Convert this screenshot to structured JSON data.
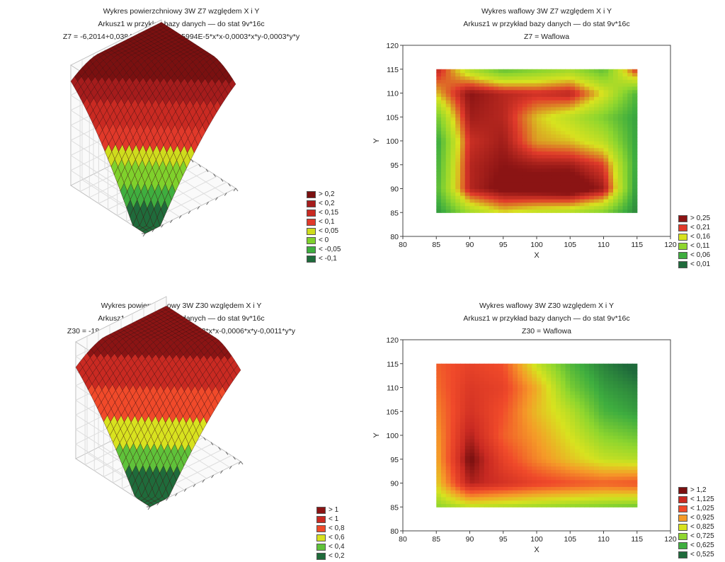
{
  "chart_data": [
    {
      "type": "surface",
      "title": "Wykres powierzchniowy 3W    Z7 względem X i Y",
      "subtitle": "Arkusz1 w przykład bazy danych — do stat 9v*16c",
      "equation": "Z7 = -6,2014+0,0384*x+0,0885*y-6,5994E-5*x*x-0,0003*x*y-0,0003*y*y",
      "legend": [
        "> 0,2",
        "< 0,2",
        "< 0,15",
        "< 0,1",
        "< 0,05",
        "< 0",
        "< -0,05",
        "< -0,1"
      ],
      "legend_colors": [
        "#7a1010",
        "#a51c1c",
        "#c92a22",
        "#e0392a",
        "#cfdc1d",
        "#7fd12c",
        "#3fae3f",
        "#1f6b3b"
      ]
    },
    {
      "type": "heatmap",
      "title": "Wykres waflowy 3W    Z7 względem X i Y",
      "subtitle": "Arkusz1 w przykład bazy danych — do stat 9v*16c",
      "series_label": "Z7 = Waflowa",
      "xlabel": "X",
      "ylabel": "Y",
      "xlim": [
        80,
        120
      ],
      "ylim": [
        80,
        120
      ],
      "xticks": [
        80,
        85,
        90,
        95,
        100,
        105,
        110,
        115,
        120
      ],
      "yticks": [
        80,
        85,
        90,
        95,
        100,
        105,
        110,
        115,
        120
      ],
      "x": [
        85,
        90,
        95,
        100,
        105,
        110,
        115
      ],
      "y": [
        85,
        90,
        95,
        100,
        105,
        110,
        115
      ],
      "z": [
        [
          0.04,
          0.12,
          0.16,
          0.14,
          0.13,
          0.1,
          0.03
        ],
        [
          0.07,
          0.23,
          0.26,
          0.27,
          0.28,
          0.24,
          0.04
        ],
        [
          0.06,
          0.23,
          0.25,
          0.24,
          0.24,
          0.21,
          0.05
        ],
        [
          0.05,
          0.22,
          0.24,
          0.18,
          0.17,
          0.14,
          0.05
        ],
        [
          0.09,
          0.24,
          0.23,
          0.17,
          0.14,
          0.1,
          0.05
        ],
        [
          0.17,
          0.25,
          0.23,
          0.22,
          0.23,
          0.16,
          0.07
        ],
        [
          0.23,
          0.13,
          0.08,
          0.1,
          0.12,
          0.08,
          0.22
        ]
      ],
      "legend": [
        "> 0,25",
        "< 0,21",
        "< 0,16",
        "< 0,11",
        "< 0,06",
        "< 0,01"
      ],
      "thresholds": [
        0.01,
        0.06,
        0.11,
        0.16,
        0.21,
        0.25
      ],
      "legend_colors": [
        "#8b1414",
        "#e03a2a",
        "#d8e21f",
        "#8fd62e",
        "#3fae3f",
        "#1f6b3b"
      ]
    },
    {
      "type": "surface",
      "title": "Wykres powierzchniowy 3W    Z30 względem X i Y",
      "subtitle": "Arkusz1 w przykład bazy danych — do stat 9v*16c",
      "equation": "Z30 = -18,9883+0,118*x+0,2881*y-0,0003*x*x-0,0006*x*y-0,0011*y*y",
      "legend": [
        "> 1",
        "< 1",
        "< 0,8",
        "< 0,6",
        "< 0,4",
        "< 0,2"
      ],
      "legend_colors": [
        "#8b1414",
        "#c92a22",
        "#f04a2a",
        "#d8e21f",
        "#5fc23a",
        "#1f6b3b"
      ]
    },
    {
      "type": "heatmap",
      "title": "Wykres waflowy 3W    Z30 względem X i Y",
      "subtitle": "Arkusz1 w przykład bazy danych — do stat 9v*16c",
      "series_label": "Z30 = Waflowa",
      "xlabel": "X",
      "ylabel": "Y",
      "xlim": [
        80,
        120
      ],
      "ylim": [
        80,
        120
      ],
      "xticks": [
        80,
        85,
        90,
        95,
        100,
        105,
        110,
        115,
        120
      ],
      "yticks": [
        80,
        85,
        90,
        95,
        100,
        105,
        110,
        115,
        120
      ],
      "x": [
        85,
        90,
        95,
        100,
        105,
        110,
        115
      ],
      "y": [
        85,
        90,
        95,
        100,
        105,
        110,
        115
      ],
      "z": [
        [
          0.72,
          0.78,
          0.76,
          0.74,
          0.72,
          0.7,
          0.68
        ],
        [
          0.85,
          1.15,
          1.1,
          1.05,
          1.02,
          1.0,
          1.02
        ],
        [
          0.9,
          1.21,
          1.05,
          0.95,
          0.87,
          0.8,
          0.78
        ],
        [
          0.92,
          1.15,
          1.0,
          0.92,
          0.82,
          0.72,
          0.68
        ],
        [
          0.95,
          1.1,
          1.02,
          0.88,
          0.78,
          0.64,
          0.6
        ],
        [
          0.98,
          1.08,
          1.05,
          0.9,
          0.7,
          0.6,
          0.56
        ],
        [
          1.0,
          1.05,
          1.02,
          0.8,
          0.65,
          0.56,
          0.5
        ]
      ],
      "legend": [
        "> 1,2",
        "< 1,125",
        "< 1,025",
        "< 0,925",
        "< 0,825",
        "< 0,725",
        "< 0,625",
        "< 0,525"
      ],
      "thresholds": [
        0.525,
        0.625,
        0.725,
        0.825,
        0.925,
        1.025,
        1.125,
        1.2
      ],
      "legend_colors": [
        "#7a1010",
        "#c92a22",
        "#f04a2a",
        "#f59a28",
        "#d8e21f",
        "#8fd62e",
        "#3fae3f",
        "#1f6b3b"
      ]
    }
  ]
}
